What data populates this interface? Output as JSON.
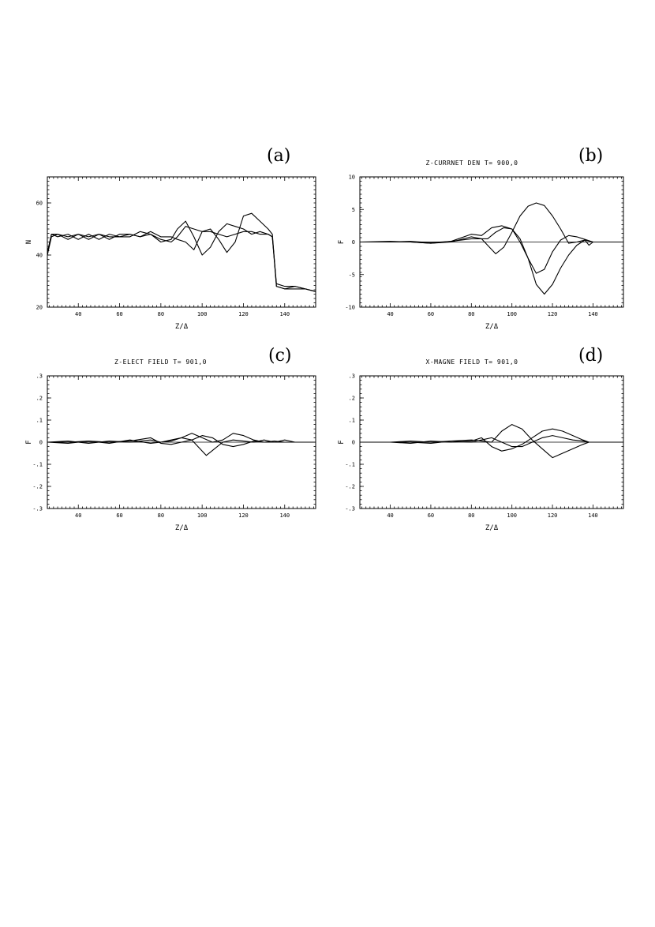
{
  "chart_data": [
    {
      "id": "a",
      "type": "line",
      "panel_label": "(a)",
      "title": "",
      "xlabel": "Z/Δ",
      "ylabel": "N",
      "xlim": [
        25,
        155
      ],
      "ylim": [
        20,
        70
      ],
      "xticks": [
        40,
        60,
        80,
        100,
        120,
        140
      ],
      "yticks": [
        20,
        40,
        60
      ],
      "xtick_labels": [
        "40",
        "60",
        "80",
        "100",
        "120",
        "140"
      ],
      "ytick_labels": [
        "20",
        "40",
        "60"
      ],
      "series": [
        {
          "x": [
            25,
            27,
            30,
            35,
            40,
            45,
            50,
            55,
            60,
            65,
            70,
            75,
            80,
            85,
            88,
            92,
            96,
            100,
            104,
            108,
            112,
            116,
            120,
            124,
            128,
            132,
            134,
            136,
            140,
            145,
            150,
            155
          ],
          "y": [
            40,
            47,
            48,
            47,
            48,
            46,
            48,
            47,
            47,
            48,
            47,
            48,
            46,
            45,
            47,
            51,
            50,
            49,
            49,
            48,
            47,
            48,
            49,
            49,
            48,
            48,
            47,
            29,
            28,
            28,
            27,
            26
          ]
        },
        {
          "x": [
            25,
            27,
            30,
            35,
            40,
            45,
            50,
            55,
            60,
            65,
            70,
            75,
            80,
            85,
            88,
            92,
            96,
            100,
            104,
            108,
            112,
            116,
            120,
            124,
            128,
            132,
            134,
            136,
            140,
            145,
            150,
            155
          ],
          "y": [
            41,
            48,
            47,
            48,
            46,
            48,
            46,
            48,
            47,
            47,
            49,
            48,
            45,
            46,
            50,
            53,
            47,
            40,
            43,
            49,
            52,
            51,
            50,
            48,
            49,
            48,
            47,
            28,
            27,
            28,
            27,
            26
          ]
        },
        {
          "x": [
            25,
            27,
            30,
            35,
            40,
            45,
            50,
            55,
            60,
            65,
            70,
            75,
            80,
            85,
            88,
            92,
            96,
            100,
            104,
            108,
            112,
            116,
            120,
            124,
            128,
            132,
            134,
            136,
            140,
            145,
            150,
            155
          ],
          "y": [
            40,
            48,
            48,
            46,
            48,
            47,
            48,
            46,
            48,
            48,
            47,
            49,
            47,
            47,
            46,
            45,
            42,
            49,
            50,
            46,
            41,
            45,
            55,
            56,
            53,
            50,
            48,
            28,
            27,
            27,
            27,
            26
          ]
        }
      ]
    },
    {
      "id": "b",
      "type": "line",
      "panel_label": "(b)",
      "title": "Z-CURRNET DEN  T= 900,0",
      "xlabel": "Z/Δ",
      "ylabel": "F",
      "xlim": [
        25,
        155
      ],
      "ylim": [
        -10,
        10
      ],
      "xticks": [
        40,
        60,
        80,
        100,
        120,
        140
      ],
      "yticks": [
        -10,
        -5,
        0,
        5,
        10
      ],
      "xtick_labels": [
        "40",
        "60",
        "80",
        "100",
        "120",
        "140"
      ],
      "ytick_labels": [
        "-10",
        "-5",
        "0",
        "5",
        "10"
      ],
      "series": [
        {
          "x": [
            25,
            40,
            50,
            60,
            70,
            80,
            85,
            88,
            92,
            96,
            100,
            104,
            108,
            112,
            116,
            120,
            124,
            128,
            132,
            136,
            138,
            140,
            145,
            155
          ],
          "y": [
            0,
            0.1,
            0,
            -0.2,
            0,
            0.8,
            0.5,
            -0.5,
            -1.8,
            -0.8,
            1.5,
            4,
            5.5,
            6,
            5.6,
            4,
            2,
            -0.2,
            0,
            0.3,
            -0.5,
            0,
            0,
            0
          ]
        },
        {
          "x": [
            25,
            40,
            50,
            60,
            70,
            80,
            84,
            88,
            92,
            96,
            100,
            104,
            108,
            112,
            116,
            120,
            124,
            128,
            132,
            136,
            140,
            145,
            155
          ],
          "y": [
            0,
            0,
            0.1,
            -0.1,
            0.1,
            0.5,
            0.5,
            0.5,
            1.5,
            2.2,
            2.0,
            0.5,
            -2.5,
            -6.5,
            -8.0,
            -6.5,
            -4,
            -2,
            -0.5,
            0.3,
            0,
            0,
            0
          ]
        },
        {
          "x": [
            25,
            40,
            50,
            60,
            70,
            80,
            85,
            90,
            95,
            100,
            104,
            108,
            112,
            116,
            120,
            124,
            128,
            132,
            136,
            140,
            145,
            155
          ],
          "y": [
            0,
            0,
            0,
            -0.2,
            0.1,
            1.2,
            1,
            2.2,
            2.5,
            2.0,
            0,
            -2.5,
            -4.8,
            -4.2,
            -1.5,
            0.3,
            1.0,
            0.8,
            0.4,
            0,
            0,
            0
          ]
        }
      ]
    },
    {
      "id": "c",
      "type": "line",
      "panel_label": "(c)",
      "title": "Z-ELECT FIELD  T= 901,0",
      "xlabel": "Z/Δ",
      "ylabel": "F",
      "xlim": [
        25,
        155
      ],
      "ylim": [
        -0.3,
        0.3
      ],
      "xticks": [
        40,
        60,
        80,
        100,
        120,
        140
      ],
      "yticks": [
        -0.3,
        -0.2,
        -0.1,
        0,
        0.1,
        0.2,
        0.3
      ],
      "xtick_labels": [
        "40",
        "60",
        "80",
        "100",
        "120",
        "140"
      ],
      "ytick_labels": [
        "-.3",
        "-.2",
        "-.1",
        "0",
        ".1",
        ".2",
        ".3"
      ],
      "series": [
        {
          "x": [
            25,
            35,
            45,
            55,
            65,
            75,
            80,
            85,
            90,
            95,
            100,
            105,
            110,
            115,
            120,
            125,
            130,
            135,
            140,
            145,
            155
          ],
          "y": [
            0,
            0.005,
            -0.005,
            0.005,
            0,
            0.01,
            0,
            0.005,
            0.02,
            0.04,
            0.02,
            0,
            0.01,
            0.04,
            0.03,
            0.01,
            0,
            0,
            0.01,
            0,
            0
          ]
        },
        {
          "x": [
            25,
            35,
            45,
            55,
            65,
            75,
            80,
            85,
            90,
            95,
            98,
            102,
            106,
            110,
            115,
            120,
            125,
            130,
            135,
            140,
            145,
            155
          ],
          "y": [
            0,
            0,
            0.005,
            -0.005,
            0.01,
            -0.005,
            0,
            0.01,
            0.02,
            0.01,
            -0.02,
            -0.06,
            -0.03,
            0,
            0.01,
            0.005,
            0,
            0.01,
            0,
            0,
            0,
            0
          ]
        },
        {
          "x": [
            25,
            35,
            45,
            55,
            65,
            75,
            80,
            85,
            90,
            95,
            100,
            105,
            110,
            115,
            120,
            125,
            130,
            135,
            140,
            145,
            155
          ],
          "y": [
            0,
            -0.005,
            0.005,
            0,
            0.005,
            0.02,
            -0.005,
            -0.01,
            0,
            0.01,
            0.03,
            0.02,
            -0.01,
            -0.02,
            -0.01,
            0.005,
            0,
            0.005,
            0,
            0,
            0
          ]
        }
      ]
    },
    {
      "id": "d",
      "type": "line",
      "panel_label": "(d)",
      "title": "X-MAGNE FIELD  T= 901,0",
      "xlabel": "Z/Δ",
      "ylabel": "F",
      "xlim": [
        25,
        155
      ],
      "ylim": [
        -0.3,
        0.3
      ],
      "xticks": [
        40,
        60,
        80,
        100,
        120,
        140
      ],
      "yticks": [
        -0.3,
        -0.2,
        -0.1,
        0,
        0.1,
        0.2,
        0.3
      ],
      "xtick_labels": [
        "40",
        "60",
        "80",
        "100",
        "120",
        "140"
      ],
      "ytick_labels": [
        "-.3",
        "-.2",
        "-.1",
        "0",
        ".1",
        ".2",
        ".3"
      ],
      "series": [
        {
          "x": [
            25,
            40,
            50,
            60,
            70,
            80,
            85,
            90,
            95,
            100,
            105,
            110,
            115,
            120,
            125,
            130,
            135,
            138,
            145,
            155
          ],
          "y": [
            0,
            0,
            0.005,
            0,
            0.005,
            0.01,
            0.005,
            0,
            0.05,
            0.08,
            0.06,
            0.01,
            -0.03,
            -0.07,
            -0.05,
            -0.03,
            -0.01,
            0,
            0,
            0
          ]
        },
        {
          "x": [
            25,
            40,
            50,
            60,
            70,
            80,
            85,
            90,
            95,
            100,
            105,
            110,
            115,
            120,
            125,
            130,
            135,
            138,
            145,
            155
          ],
          "y": [
            0,
            0,
            -0.005,
            0.005,
            0,
            0.005,
            0.02,
            -0.02,
            -0.04,
            -0.03,
            -0.01,
            0.02,
            0.05,
            0.06,
            0.05,
            0.03,
            0.01,
            0,
            0,
            0
          ]
        },
        {
          "x": [
            25,
            40,
            50,
            60,
            70,
            80,
            85,
            90,
            95,
            100,
            105,
            110,
            115,
            120,
            125,
            130,
            135,
            138,
            145,
            155
          ],
          "y": [
            0,
            0,
            0,
            -0.005,
            0.005,
            0,
            0.01,
            0.02,
            0,
            -0.02,
            -0.02,
            0,
            0.02,
            0.03,
            0.02,
            0.01,
            0.005,
            0,
            0,
            0
          ]
        }
      ]
    }
  ]
}
